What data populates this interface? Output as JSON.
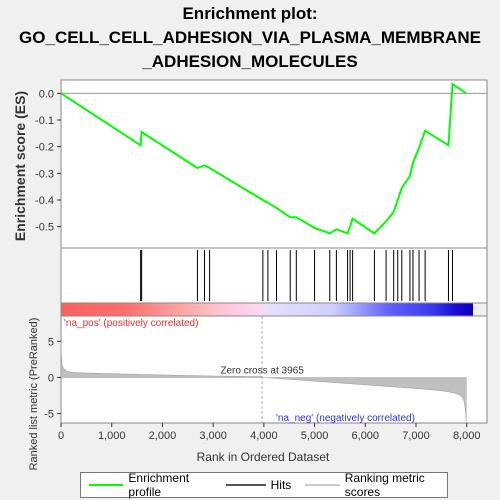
{
  "chart_data": {
    "type": "line",
    "title_line1": "Enrichment plot:",
    "title_line2": "GO_CELL_CELL_ADHESION_VIA_PLASMA_MEMBRANE",
    "title_line3": "_ADHESION_MOLECULES",
    "es_ylabel": "Enrichment score (ES)",
    "rank_ylabel": "Ranked list metric (PreRanked)",
    "xlabel": "Rank in Ordered Dataset",
    "xlim": [
      0,
      8400
    ],
    "es_ylim": [
      -0.58,
      0.05
    ],
    "rank_ylim": [
      -6.3,
      8.5
    ],
    "x_ticks": [
      "0",
      "1,000",
      "2,000",
      "3,000",
      "4,000",
      "5,000",
      "6,000",
      "7,000",
      "8,000"
    ],
    "x_tick_values": [
      0,
      1000,
      2000,
      3000,
      4000,
      5000,
      6000,
      7000,
      8000
    ],
    "es_ticks": [
      "0.0",
      "-0.1",
      "-0.2",
      "-0.3",
      "-0.4",
      "-0.5"
    ],
    "es_tick_values": [
      0.0,
      -0.1,
      -0.2,
      -0.3,
      -0.4,
      -0.5
    ],
    "rank_ticks": [
      "5",
      "0",
      "-5"
    ],
    "rank_tick_values": [
      5,
      0,
      -5
    ],
    "zero_cross_label": "Zero cross at 3965",
    "zero_cross": 3965,
    "pos_label": "'na_pos' (positively correlated)",
    "neg_label": "'na_neg' (negatively correlated)",
    "hits": [
      1570,
      1590,
      2690,
      2830,
      2930,
      3980,
      4080,
      4250,
      4520,
      4640,
      5000,
      5300,
      5430,
      5650,
      5700,
      5750,
      6180,
      6410,
      6560,
      6640,
      6720,
      6880,
      6940,
      7060,
      7180,
      7640,
      7720
    ],
    "es_series": {
      "name": "Enrichment profile",
      "color": "#00ff00",
      "x": [
        0,
        1570,
        1590,
        2690,
        2830,
        2930,
        3980,
        4080,
        4250,
        4520,
        4640,
        5000,
        5300,
        5430,
        5650,
        5700,
        5750,
        6180,
        6410,
        6560,
        6640,
        6720,
        6880,
        6940,
        7060,
        7180,
        7640,
        7720,
        7990
      ],
      "y": [
        0.0,
        -0.195,
        -0.145,
        -0.28,
        -0.27,
        -0.28,
        -0.4,
        -0.41,
        -0.43,
        -0.465,
        -0.465,
        -0.505,
        -0.525,
        -0.51,
        -0.525,
        -0.5,
        -0.47,
        -0.525,
        -0.48,
        -0.445,
        -0.4,
        -0.355,
        -0.31,
        -0.26,
        -0.205,
        -0.14,
        -0.195,
        0.035,
        0.0
      ]
    },
    "legend": [
      "Enrichment profile",
      "Hits",
      "Ranking metric scores"
    ],
    "legend_colors": {
      "profile": "#00ff00",
      "hits": "#000000",
      "metric": "#cccccc"
    }
  }
}
